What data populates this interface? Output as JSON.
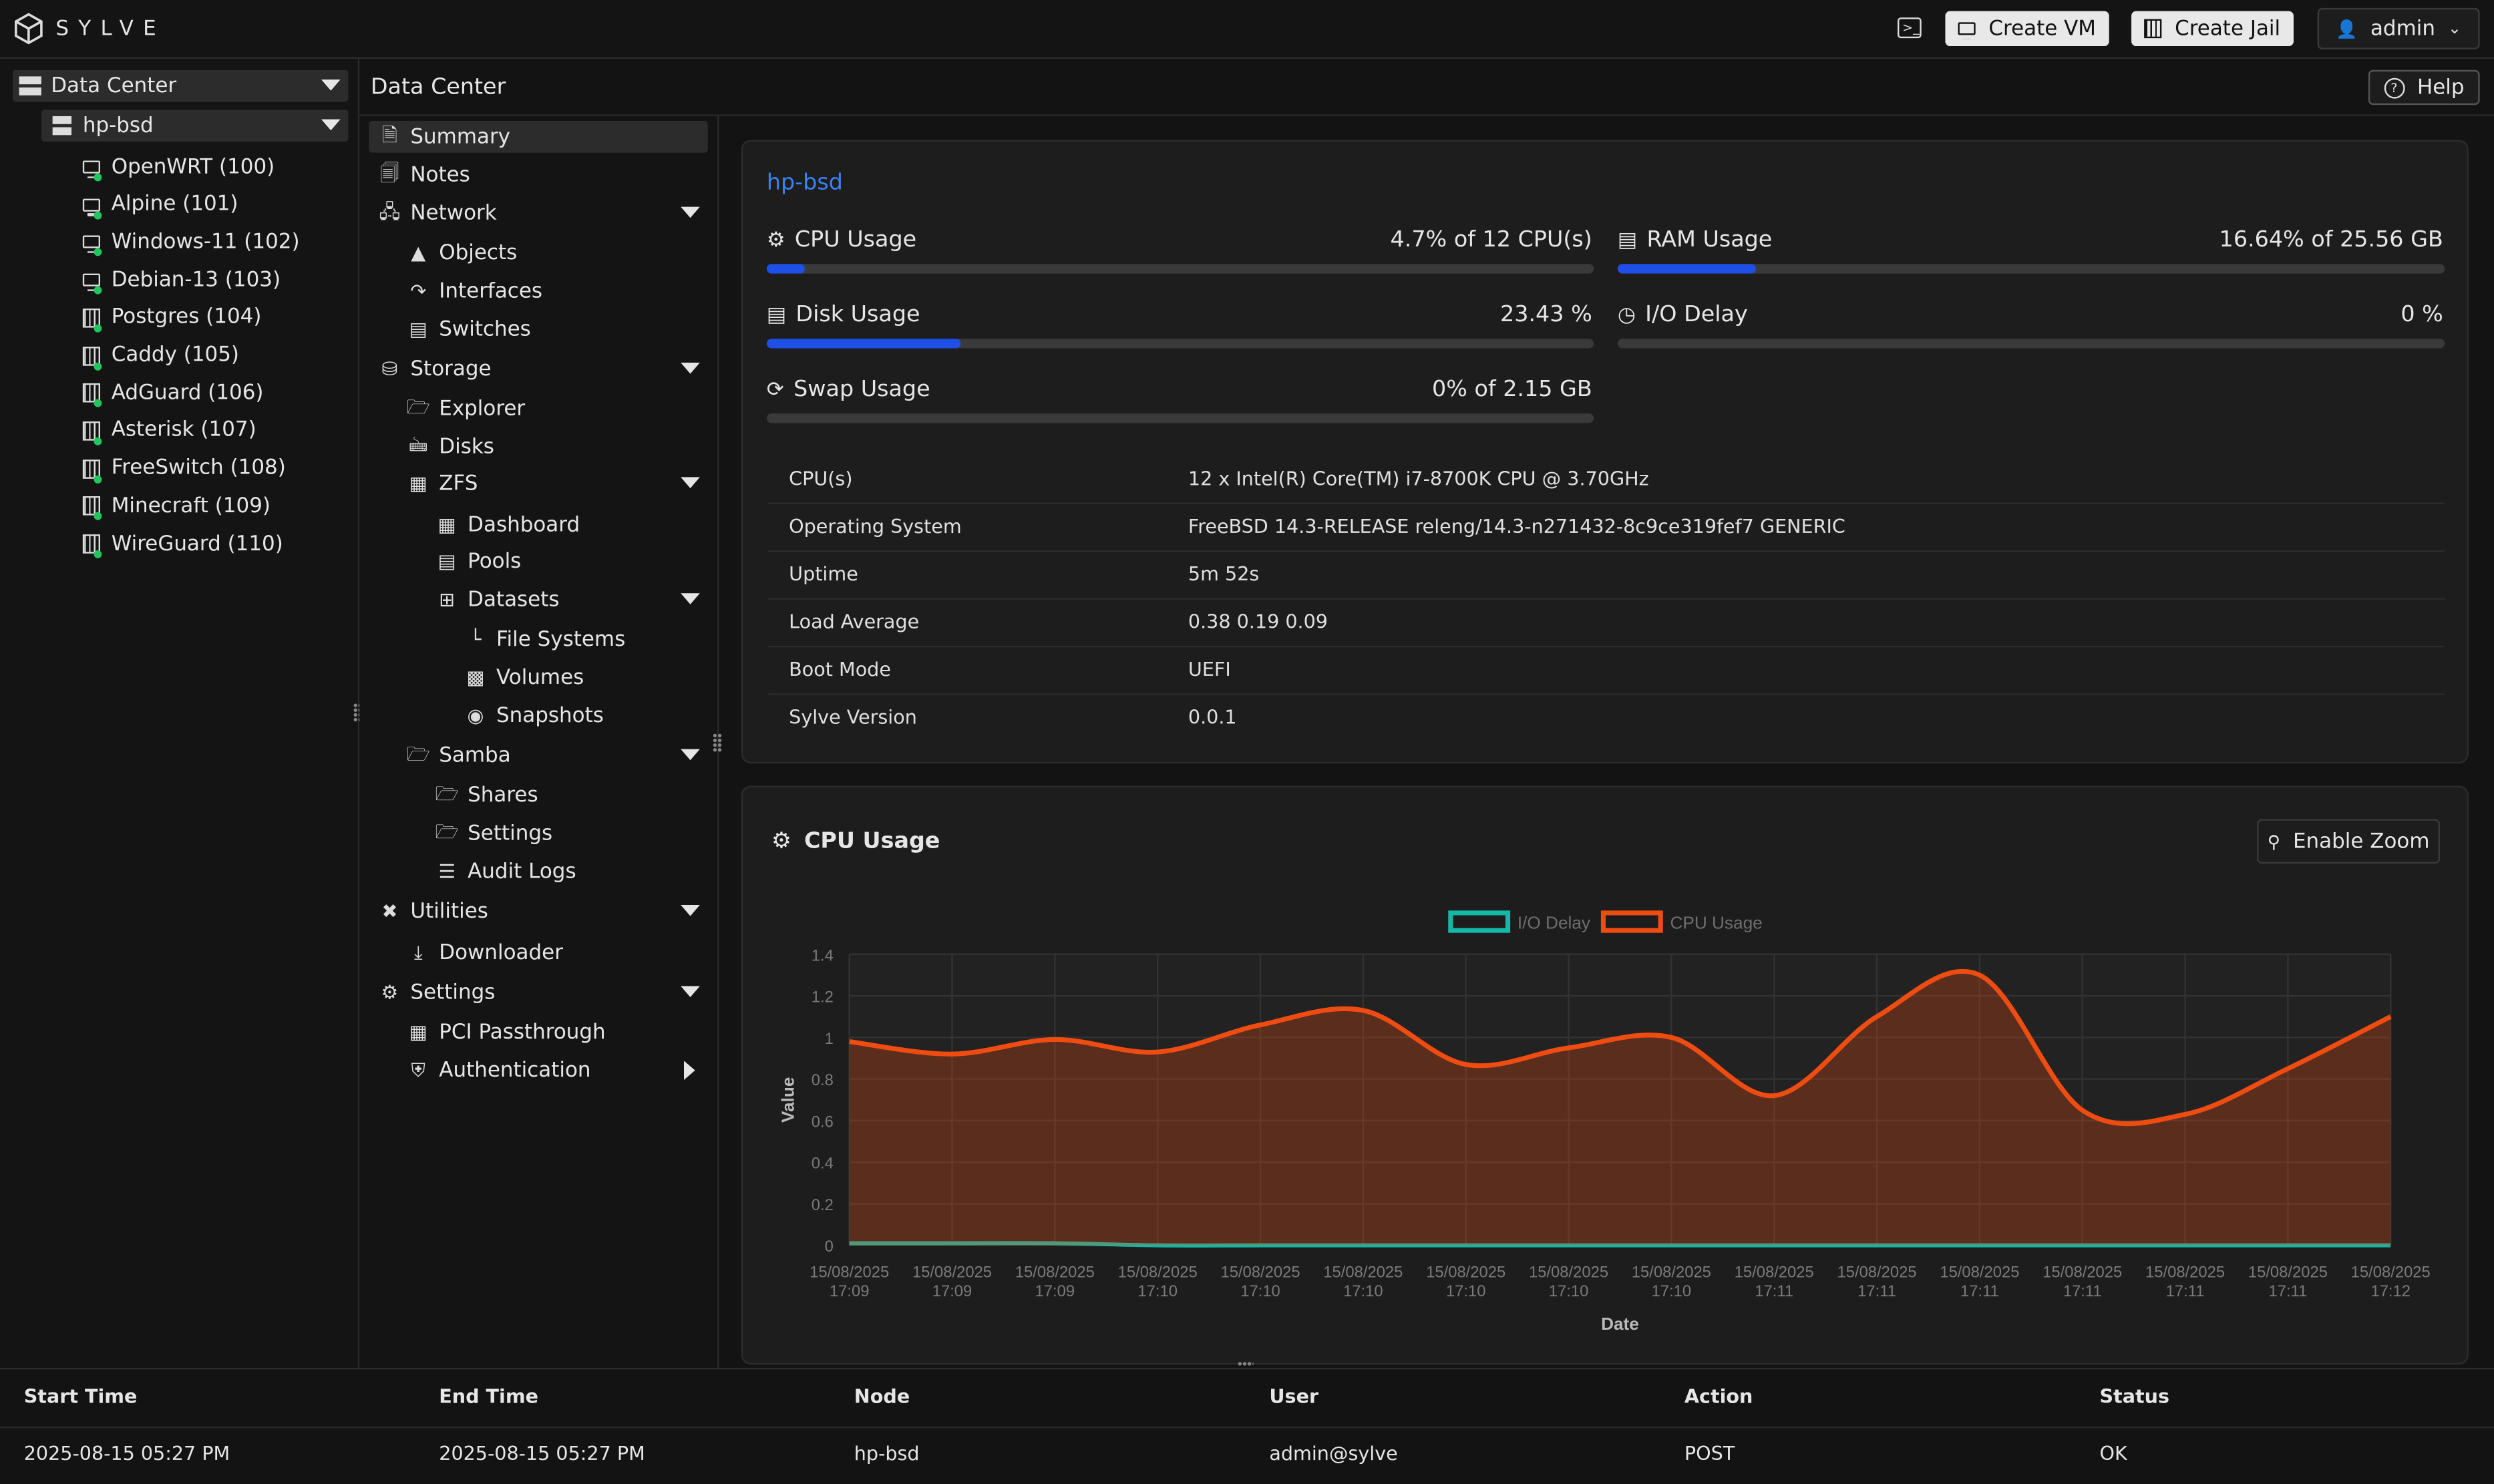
{
  "header": {
    "brand": "SYLVE",
    "create_vm": "Create VM",
    "create_jail": "Create Jail",
    "user": "admin"
  },
  "tree": {
    "root": "Data Center",
    "node": "hp-bsd",
    "guests": [
      {
        "label": "OpenWRT (100)",
        "kind": "vm"
      },
      {
        "label": "Alpine (101)",
        "kind": "vm"
      },
      {
        "label": "Windows-11 (102)",
        "kind": "vm"
      },
      {
        "label": "Debian-13 (103)",
        "kind": "vm"
      },
      {
        "label": "Postgres (104)",
        "kind": "jail"
      },
      {
        "label": "Caddy (105)",
        "kind": "jail"
      },
      {
        "label": "AdGuard (106)",
        "kind": "jail"
      },
      {
        "label": "Asterisk (107)",
        "kind": "jail"
      },
      {
        "label": "FreeSwitch (108)",
        "kind": "jail"
      },
      {
        "label": "Minecraft (109)",
        "kind": "jail"
      },
      {
        "label": "WireGuard (110)",
        "kind": "jail"
      }
    ]
  },
  "breadcrumb": "Data Center",
  "help": "Help",
  "nav": {
    "summary": "Summary",
    "notes": "Notes",
    "network": "Network",
    "objects": "Objects",
    "interfaces": "Interfaces",
    "switches": "Switches",
    "storage": "Storage",
    "explorer": "Explorer",
    "disks": "Disks",
    "zfs": "ZFS",
    "dashboard": "Dashboard",
    "pools": "Pools",
    "datasets": "Datasets",
    "file_systems": "File Systems",
    "volumes": "Volumes",
    "snapshots": "Snapshots",
    "samba": "Samba",
    "shares": "Shares",
    "samba_settings": "Settings",
    "audit_logs": "Audit Logs",
    "utilities": "Utilities",
    "downloader": "Downloader",
    "settings": "Settings",
    "pci": "PCI Passthrough",
    "auth": "Authentication"
  },
  "summary": {
    "node_link": "hp-bsd",
    "cpu": {
      "label": "CPU Usage",
      "value": "4.7% of 12 CPU(s)",
      "percent": 4.7
    },
    "ram": {
      "label": "RAM Usage",
      "value": "16.64% of 25.56 GB",
      "percent": 16.64
    },
    "disk": {
      "label": "Disk Usage",
      "value": "23.43 %",
      "percent": 23.43
    },
    "io": {
      "label": "I/O Delay",
      "value": "0 %",
      "percent": 0
    },
    "swap": {
      "label": "Swap Usage",
      "value": "0% of 2.15 GB",
      "percent": 0
    },
    "info": [
      {
        "k": "CPU(s)",
        "v": "12 x Intel(R) Core(TM) i7-8700K CPU @ 3.70GHz"
      },
      {
        "k": "Operating System",
        "v": "FreeBSD 14.3-RELEASE releng/14.3-n271432-8c9ce319fef7 GENERIC"
      },
      {
        "k": "Uptime",
        "v": "5m 52s"
      },
      {
        "k": "Load Average",
        "v": "0.38 0.19 0.09"
      },
      {
        "k": "Boot Mode",
        "v": "UEFI"
      },
      {
        "k": "Sylve Version",
        "v": "0.0.1"
      }
    ]
  },
  "chart_card": {
    "title": "CPU Usage",
    "zoom_button": "Enable Zoom"
  },
  "chart_data": {
    "type": "line",
    "title": "",
    "xlabel": "Date",
    "ylabel": "Value",
    "ylim": [
      0,
      1.4
    ],
    "yticks": [
      "0",
      "0.2",
      "0.4",
      "0.6",
      "0.8",
      "1",
      "1.2",
      "1.4"
    ],
    "legend_position": "top",
    "grid": true,
    "x": [
      "15/08/2025 17:09",
      "15/08/2025 17:09",
      "15/08/2025 17:09",
      "15/08/2025 17:10",
      "15/08/2025 17:10",
      "15/08/2025 17:10",
      "15/08/2025 17:10",
      "15/08/2025 17:10",
      "15/08/2025 17:10",
      "15/08/2025 17:11",
      "15/08/2025 17:11",
      "15/08/2025 17:11",
      "15/08/2025 17:11",
      "15/08/2025 17:11",
      "15/08/2025 17:11",
      "15/08/2025 17:12"
    ],
    "series": [
      {
        "name": "I/O Delay",
        "color": "#14b8a6",
        "values": [
          0.01,
          0.01,
          0.01,
          0.0,
          0.0,
          0.0,
          0.0,
          0.0,
          0.0,
          0.0,
          0.0,
          0.0,
          0.0,
          0.0,
          0.0,
          0.0
        ]
      },
      {
        "name": "CPU Usage",
        "color": "#ef4c12",
        "values": [
          0.98,
          0.92,
          0.99,
          0.93,
          1.06,
          1.13,
          0.87,
          0.95,
          1.0,
          0.72,
          1.1,
          1.3,
          0.65,
          0.63,
          0.85,
          1.1
        ]
      }
    ]
  },
  "audit": {
    "headers": [
      "Start Time",
      "End Time",
      "Node",
      "User",
      "Action",
      "Status"
    ],
    "row": [
      "2025-08-15 05:27 PM",
      "2025-08-15 05:27 PM",
      "hp-bsd",
      "admin@sylve",
      "POST",
      "OK"
    ]
  }
}
